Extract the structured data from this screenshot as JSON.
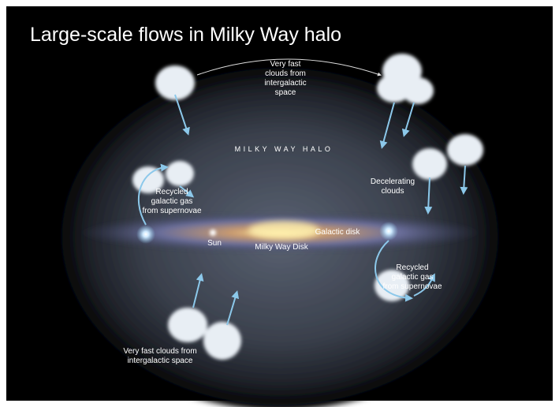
{
  "title": "Large-scale flows in Milky Way halo",
  "labels": [
    {
      "lines": [
        "Very fast",
        "clouds from",
        "intergalactic",
        "space"
      ]
    },
    {
      "lines": [
        "MILKY WAY HALO"
      ]
    },
    {
      "lines": [
        "Recycled",
        "galactic gas",
        "from supernovae"
      ]
    },
    {
      "lines": [
        "Decelerating",
        "clouds"
      ]
    },
    {
      "lines": [
        "Sun"
      ]
    },
    {
      "lines": [
        "Galactic disk"
      ]
    },
    {
      "lines": [
        "Milky Way Disk"
      ]
    },
    {
      "lines": [
        "Recycled",
        "galactic gas",
        "from supernovae"
      ]
    },
    {
      "lines": [
        "Very fast clouds from",
        "intergalactic space"
      ]
    }
  ]
}
